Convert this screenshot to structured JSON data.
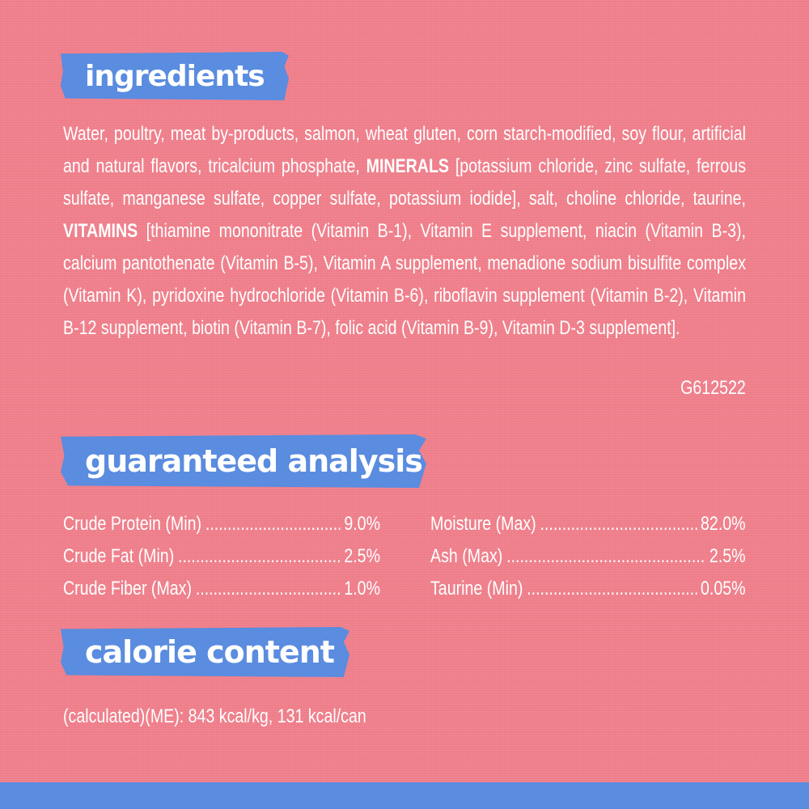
{
  "ingredients": {
    "heading": "ingredients",
    "text_1": "Water, poultry, meat by-products, salmon, wheat gluten, corn starch-modified, soy flour, artificial and natural flavors, tricalcium phosphate, ",
    "minerals_label": "MINERALS",
    "text_2": " [potassium chloride, zinc sulfate, ferrous sulfate, manganese sulfate, copper sulfate, potassium iodide], salt, choline chloride, taurine, ",
    "vitamins_label": "VITAMINS",
    "text_3": " [thiamine mononitrate (Vitamin B-1), Vitamin E supplement, niacin (Vitamin B-3), calcium pantothenate (Vitamin B-5), Vitamin A supplement, menadione sodium bisulfite complex (Vitamin K), pyridoxine hydrochloride (Vitamin B-6), riboflavin supplement (Vitamin B-2), Vitamin B-12 supplement, biotin (Vitamin B-7), folic acid (Vitamin B-9), Vitamin D-3 supplement].",
    "code": "G612522"
  },
  "analysis": {
    "heading": "guaranteed analysis",
    "left": [
      {
        "label": "Crude Protein (Min)",
        "value": "9.0%"
      },
      {
        "label": "Crude Fat (Min)",
        "value": "2.5%"
      },
      {
        "label": "Crude Fiber (Max)",
        "value": "1.0%"
      }
    ],
    "right": [
      {
        "label": "Moisture (Max)",
        "value": "82.0%"
      },
      {
        "label": "Ash (Max)",
        "value": "2.5%"
      },
      {
        "label": "Taurine (Min)",
        "value": "0.05%"
      }
    ]
  },
  "calorie": {
    "heading": "calorie content",
    "text": "(calculated)(ME): 843 kcal/kg, 131 kcal/can"
  },
  "colors": {
    "background": "#ef7f8b",
    "accent": "#5a8ce0",
    "text": "#ffffff"
  }
}
